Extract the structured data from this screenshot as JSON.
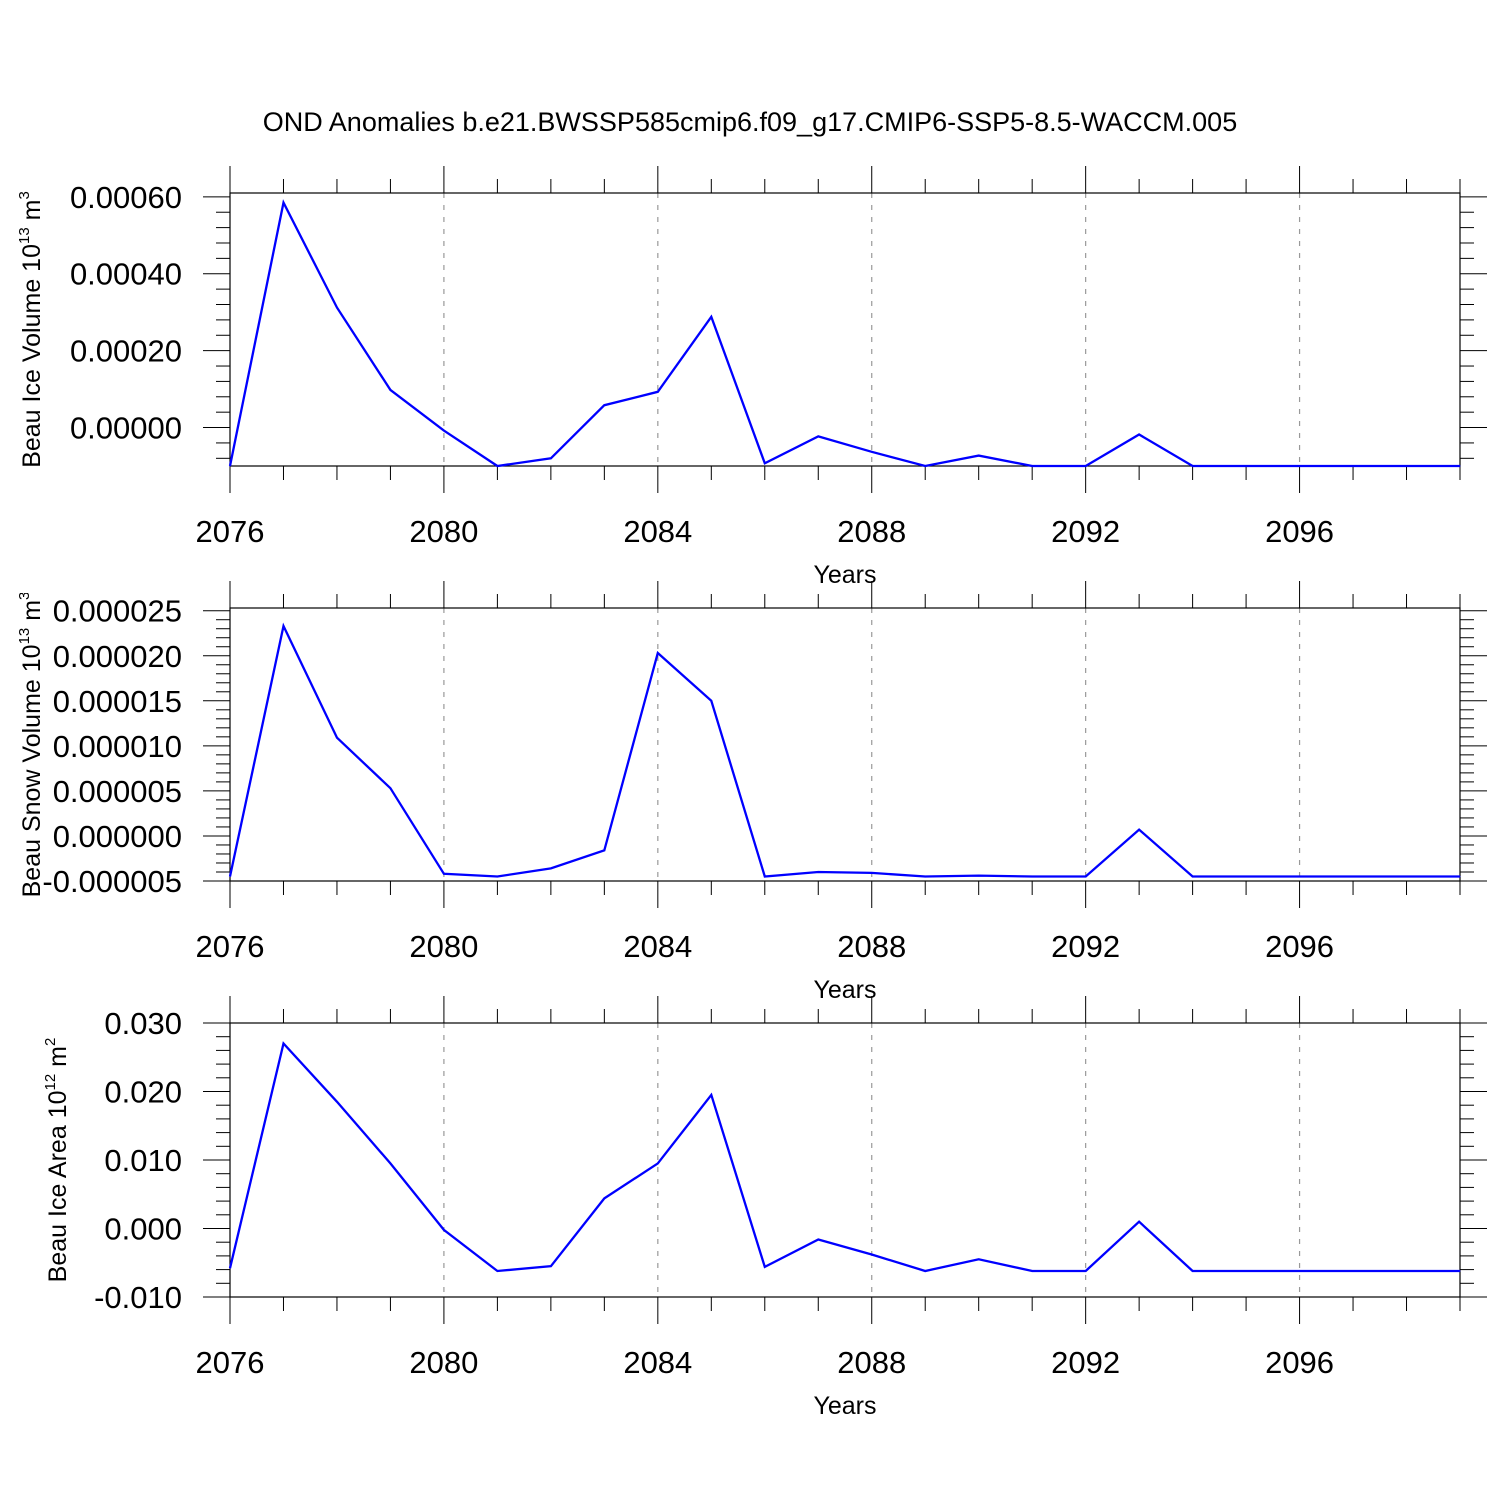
{
  "title": "OND Anomalies b.e21.BWSSP585cmip6.f09_g17.CMIP6-SSP5-8.5-WACCM.005",
  "chart_data": [
    {
      "type": "line",
      "xlabel": "Years",
      "ylabel": {
        "text": "Beau Ice Volume 10",
        "sup": "13",
        "unit": " m",
        "unit_sup": "3"
      },
      "xlim": [
        2076,
        2099
      ],
      "ylim": [
        -0.0001,
        0.00061
      ],
      "x_ticks": [
        "2076",
        "2080",
        "2084",
        "2088",
        "2092",
        "2096"
      ],
      "y_ticks": [
        "0.00060",
        "0.00040",
        "0.00020",
        "0.00000"
      ],
      "grid": "dashed vertical lines at x major ticks",
      "color": "#0000ff",
      "x": [
        2076,
        2077,
        2078,
        2079,
        2080,
        2081,
        2082,
        2083,
        2084,
        2085,
        2086,
        2087,
        2088,
        2089,
        2090,
        2091,
        2092,
        2093,
        2094,
        2095,
        2096,
        2097,
        2098,
        2099
      ],
      "values": [
        -0.0001,
        0.000585,
        0.000312,
        9.8e-05,
        -8e-06,
        -0.0001,
        -8e-05,
        5.8e-05,
        9.3e-05,
        0.000288,
        -9.3e-05,
        -2.3e-05,
        -6.3e-05,
        -0.0001,
        -7.3e-05,
        -0.0001,
        -0.0001,
        -1.8e-05,
        -0.0001,
        -0.0001,
        -0.0001,
        -0.0001,
        -0.0001,
        -0.0001
      ]
    },
    {
      "type": "line",
      "xlabel": "Years",
      "ylabel": {
        "text": "Beau Snow Volume 10",
        "sup": "13",
        "unit": " m",
        "unit_sup": "3"
      },
      "xlim": [
        2076,
        2099
      ],
      "ylim": [
        -5e-06,
        2.53e-05
      ],
      "x_ticks": [
        "2076",
        "2080",
        "2084",
        "2088",
        "2092",
        "2096"
      ],
      "y_ticks": [
        "0.000025",
        "0.000020",
        "0.000015",
        "0.000010",
        "0.000005",
        "0.000000",
        "-0.000005"
      ],
      "grid": "dashed vertical lines at x major ticks",
      "color": "#0000ff",
      "x": [
        2076,
        2077,
        2078,
        2079,
        2080,
        2081,
        2082,
        2083,
        2084,
        2085,
        2086,
        2087,
        2088,
        2089,
        2090,
        2091,
        2092,
        2093,
        2094,
        2095,
        2096,
        2097,
        2098,
        2099
      ],
      "values": [
        -4.5e-06,
        2.33e-05,
        1.09e-05,
        5.3e-06,
        -4.2e-06,
        -4.5e-06,
        -3.6e-06,
        -1.6e-06,
        2.03e-05,
        1.5e-05,
        -4.5e-06,
        -4e-06,
        -4.1e-06,
        -4.5e-06,
        -4.4e-06,
        -4.5e-06,
        -4.5e-06,
        7e-07,
        -4.5e-06,
        -4.5e-06,
        -4.5e-06,
        -4.5e-06,
        -4.5e-06,
        -4.5e-06
      ]
    },
    {
      "type": "line",
      "xlabel": "Years",
      "ylabel": {
        "text": "Beau Ice Area 10",
        "sup": "12",
        "unit": " m",
        "unit_sup": "2"
      },
      "xlim": [
        2076,
        2099
      ],
      "ylim": [
        -0.01,
        0.03
      ],
      "x_ticks": [
        "2076",
        "2080",
        "2084",
        "2088",
        "2092",
        "2096"
      ],
      "y_ticks": [
        "0.030",
        "0.020",
        "0.010",
        "0.000",
        "-0.010"
      ],
      "grid": "dashed vertical lines at x major ticks",
      "color": "#0000ff",
      "x": [
        2076,
        2077,
        2078,
        2079,
        2080,
        2081,
        2082,
        2083,
        2084,
        2085,
        2086,
        2087,
        2088,
        2089,
        2090,
        2091,
        2092,
        2093,
        2094,
        2095,
        2096,
        2097,
        2098,
        2099
      ],
      "values": [
        -0.0058,
        0.027,
        0.0185,
        0.0095,
        -0.0002,
        -0.0062,
        -0.0055,
        0.0044,
        0.0095,
        0.0195,
        -0.0056,
        -0.0016,
        -0.0038,
        -0.0062,
        -0.0045,
        -0.0062,
        -0.0062,
        0.001,
        -0.0062,
        -0.0062,
        -0.0062,
        -0.0062,
        -0.0062,
        -0.0062
      ]
    }
  ]
}
